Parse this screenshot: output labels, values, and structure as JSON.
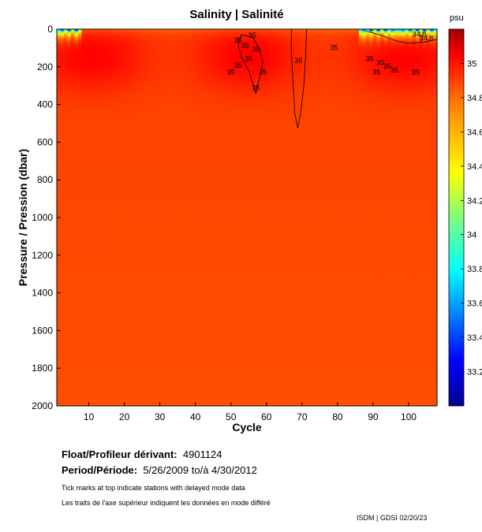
{
  "chart_data": {
    "type": "heatmap",
    "title": "Salinity | Salinité",
    "xlabel": "Cycle",
    "ylabel": "Pressure / Pression (dbar)",
    "xlim": [
      1,
      108
    ],
    "ylim": [
      0,
      2000
    ],
    "y_inverted": true,
    "x_ticks": [
      10,
      20,
      30,
      40,
      50,
      60,
      70,
      80,
      90,
      100
    ],
    "y_ticks": [
      0,
      200,
      400,
      600,
      800,
      1000,
      1200,
      1400,
      1600,
      1800,
      2000
    ],
    "colorbar": {
      "unit": "psu",
      "range": [
        33.0,
        35.2
      ],
      "tick_labels": [
        "35",
        "34.8",
        "34.6",
        "34.4",
        "34.2",
        "34",
        "33.8",
        "33.6",
        "33.4",
        "33.2"
      ],
      "tick_values": [
        35.0,
        34.8,
        34.6,
        34.4,
        34.2,
        34.0,
        33.8,
        33.6,
        33.4,
        33.2
      ]
    },
    "contour_labels": [
      {
        "text": "35",
        "cycle": 56,
        "pressure": 45
      },
      {
        "text": "35",
        "cycle": 52,
        "pressure": 72
      },
      {
        "text": "35",
        "cycle": 54,
        "pressure": 100
      },
      {
        "text": "35",
        "cycle": 57,
        "pressure": 120
      },
      {
        "text": "35",
        "cycle": 55,
        "pressure": 170
      },
      {
        "text": "35",
        "cycle": 52,
        "pressure": 205
      },
      {
        "text": "35",
        "cycle": 50,
        "pressure": 240
      },
      {
        "text": "35",
        "cycle": 59,
        "pressure": 240
      },
      {
        "text": "35",
        "cycle": 57,
        "pressure": 325
      },
      {
        "text": "35",
        "cycle": 69,
        "pressure": 180
      },
      {
        "text": "35",
        "cycle": 79,
        "pressure": 110
      },
      {
        "text": "35",
        "cycle": 89,
        "pressure": 170
      },
      {
        "text": "35",
        "cycle": 92,
        "pressure": 190
      },
      {
        "text": "35",
        "cycle": 94,
        "pressure": 210
      },
      {
        "text": "35",
        "cycle": 91,
        "pressure": 240
      },
      {
        "text": "35",
        "cycle": 96,
        "pressure": 230
      },
      {
        "text": "35",
        "cycle": 102,
        "pressure": 240
      },
      {
        "text": "34.8",
        "cycle": 103,
        "pressure": 40
      },
      {
        "text": "34.8",
        "cycle": 105,
        "pressure": 60
      }
    ],
    "contour_levels": [
      34.8,
      35.0
    ],
    "field_summary": {
      "surface_fresh_cycles": [
        [
          1,
          8
        ],
        [
          86,
          108
        ]
      ],
      "surface_min_salinity": 33.1,
      "deep_salinity": 34.9,
      "subsurface_max_salinity": 35.05
    }
  },
  "info": {
    "float_label": "Float/Profileur dérivant:",
    "float_value": "4901124",
    "period_label": "Period/Période:",
    "period_value": "5/26/2009  to/à  4/30/2012",
    "note_en": "Tick marks at top indicate stations with delayed mode data",
    "note_fr": "Les traits de l'axe supérieur indiquent les données en mode différé",
    "credit": "ISDM | GDSI  02/20/23"
  }
}
